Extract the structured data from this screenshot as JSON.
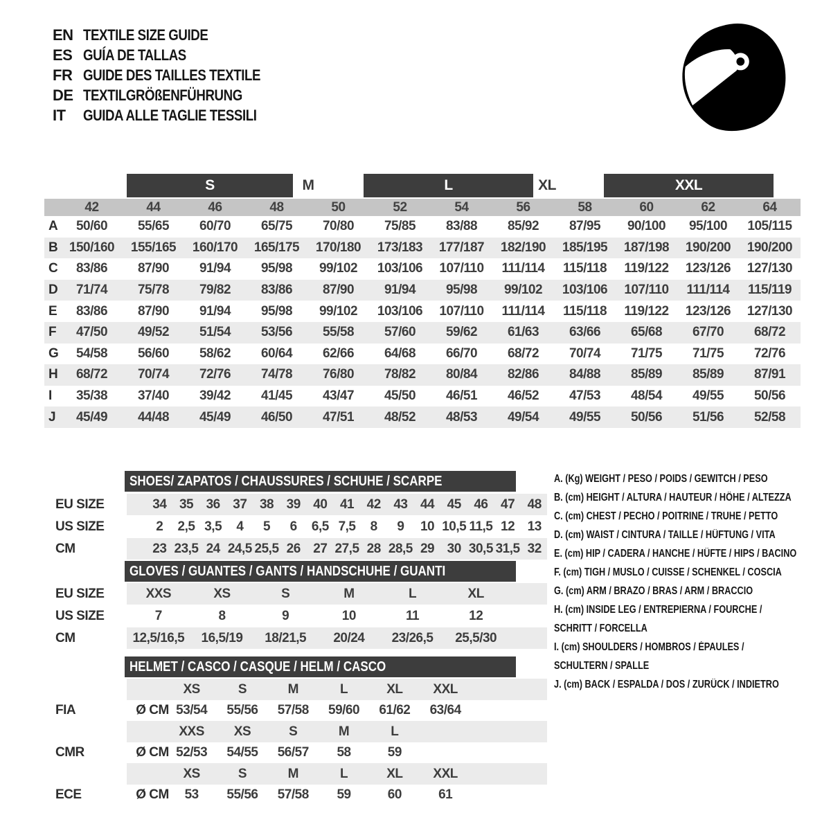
{
  "header": {
    "languages": [
      {
        "code": "EN",
        "title": "TEXTILE SIZE GUIDE"
      },
      {
        "code": "ES",
        "title": "GUÍA DE TALLAS"
      },
      {
        "code": "FR",
        "title": "GUIDE DES TAILLES TEXTILE"
      },
      {
        "code": "DE",
        "title": "TEXTILGRÖßENFÜHRUNG"
      },
      {
        "code": "IT",
        "title": "GUIDA ALLE TAGLIE TESSILI"
      }
    ],
    "icon": "racing-helmet-icon"
  },
  "textile_table": {
    "size_groups": [
      {
        "label": "S",
        "boxed": true
      },
      {
        "label": "M",
        "boxed": false
      },
      {
        "label": "L",
        "boxed": true
      },
      {
        "label": "XL",
        "boxed": false
      },
      {
        "label": "XXL",
        "boxed": true
      }
    ],
    "numeric_sizes": [
      "42",
      "44",
      "46",
      "48",
      "50",
      "52",
      "54",
      "56",
      "58",
      "60",
      "62",
      "64"
    ],
    "rows": [
      {
        "letter": "A",
        "values": [
          "50/60",
          "55/65",
          "60/70",
          "65/75",
          "70/80",
          "75/85",
          "83/88",
          "85/92",
          "87/95",
          "90/100",
          "95/100",
          "105/115"
        ]
      },
      {
        "letter": "B",
        "values": [
          "150/160",
          "155/165",
          "160/170",
          "165/175",
          "170/180",
          "173/183",
          "177/187",
          "182/190",
          "185/195",
          "187/198",
          "190/200",
          "190/200"
        ]
      },
      {
        "letter": "C",
        "values": [
          "83/86",
          "87/90",
          "91/94",
          "95/98",
          "99/102",
          "103/106",
          "107/110",
          "111/114",
          "115/118",
          "119/122",
          "123/126",
          "127/130"
        ]
      },
      {
        "letter": "D",
        "values": [
          "71/74",
          "75/78",
          "79/82",
          "83/86",
          "87/90",
          "91/94",
          "95/98",
          "99/102",
          "103/106",
          "107/110",
          "111/114",
          "115/119"
        ]
      },
      {
        "letter": "E",
        "values": [
          "83/86",
          "87/90",
          "91/94",
          "95/98",
          "99/102",
          "103/106",
          "107/110",
          "111/114",
          "115/118",
          "119/122",
          "123/126",
          "127/130"
        ]
      },
      {
        "letter": "F",
        "values": [
          "47/50",
          "49/52",
          "51/54",
          "53/56",
          "55/58",
          "57/60",
          "59/62",
          "61/63",
          "63/66",
          "65/68",
          "67/70",
          "68/72"
        ]
      },
      {
        "letter": "G",
        "values": [
          "54/58",
          "56/60",
          "58/62",
          "60/64",
          "62/66",
          "64/68",
          "66/70",
          "68/72",
          "70/74",
          "71/75",
          "71/75",
          "72/76"
        ]
      },
      {
        "letter": "H",
        "values": [
          "68/72",
          "70/74",
          "72/76",
          "74/78",
          "76/80",
          "78/82",
          "80/84",
          "82/86",
          "84/88",
          "85/89",
          "85/89",
          "87/91"
        ]
      },
      {
        "letter": "I",
        "values": [
          "35/38",
          "37/40",
          "39/42",
          "41/45",
          "43/47",
          "45/50",
          "46/51",
          "46/52",
          "47/53",
          "48/54",
          "49/55",
          "50/56"
        ]
      },
      {
        "letter": "J",
        "values": [
          "45/49",
          "44/48",
          "45/49",
          "46/50",
          "47/51",
          "48/52",
          "48/53",
          "49/54",
          "49/55",
          "50/56",
          "51/56",
          "52/58"
        ]
      }
    ]
  },
  "shoes": {
    "title": "SHOES/ ZAPATOS / CHAUSSURES / SCHUHE / SCARPE",
    "rows": [
      {
        "label": "EU SIZE",
        "values": [
          "34",
          "35",
          "36",
          "37",
          "38",
          "39",
          "40",
          "41",
          "42",
          "43",
          "44",
          "45",
          "46",
          "47",
          "48"
        ]
      },
      {
        "label": "US SIZE",
        "values": [
          "2",
          "2,5",
          "3,5",
          "4",
          "5",
          "6",
          "6,5",
          "7,5",
          "8",
          "9",
          "10",
          "10,5",
          "11,5",
          "12",
          "13"
        ]
      },
      {
        "label": "CM",
        "values": [
          "23",
          "23,5",
          "24",
          "24,5",
          "25,5",
          "26",
          "27",
          "27,5",
          "28",
          "28,5",
          "29",
          "30",
          "30,5",
          "31,5",
          "32"
        ]
      }
    ]
  },
  "gloves": {
    "title": "GLOVES / GUANTES / GANTS / HANDSCHUHE / GUANTI",
    "rows": [
      {
        "label": "EU SIZE",
        "values": [
          "XXS",
          "XS",
          "S",
          "M",
          "L",
          "XL"
        ]
      },
      {
        "label": "US SIZE",
        "values": [
          "7",
          "8",
          "9",
          "10",
          "11",
          "12"
        ]
      },
      {
        "label": "CM",
        "values": [
          "12,5/16,5",
          "16,5/19",
          "18/21,5",
          "20/24",
          "23/26,5",
          "25,5/30"
        ]
      }
    ]
  },
  "helmet": {
    "title": "HELMET / CASCO / CASQUE / HELM / CASCO",
    "standards": [
      {
        "name": "FIA",
        "unit": "Ø CM",
        "sizes": [
          "XS",
          "S",
          "M",
          "L",
          "XL",
          "XXL"
        ],
        "values": [
          "53/54",
          "55/56",
          "57/58",
          "59/60",
          "61/62",
          "63/64"
        ]
      },
      {
        "name": "CMR",
        "unit": "Ø CM",
        "sizes": [
          "XXS",
          "XS",
          "S",
          "M",
          "L"
        ],
        "values": [
          "52/53",
          "54/55",
          "56/57",
          "58",
          "59"
        ]
      },
      {
        "name": "ECE",
        "unit": "Ø CM",
        "sizes": [
          "XS",
          "S",
          "M",
          "L",
          "XL",
          "XXL"
        ],
        "values": [
          "53",
          "55/56",
          "57/58",
          "59",
          "60",
          "61"
        ]
      }
    ]
  },
  "legend": {
    "lines": [
      "A. (Kg) WEIGHT / PESO / POIDS / GEWITCH / PESO",
      "B. (cm) HEIGHT / ALTURA / HAUTEUR / HÖHE / ALTEZZA",
      "C. (cm) CHEST / PECHO / POITRINE / TRUHE / PETTO",
      "D. (cm) WAIST / CINTURA / TAILLE / HÜFTUNG / VITA",
      "E. (cm) HIP / CADERA / HANCHE / HÜFTE / HIPS / BACINO",
      "F. (cm) TIGH / MUSLO / CUISSE / SCHENKEL / COSCIA",
      "G. (cm) ARM / BRAZO / BRAS / ARM / BRACCIO",
      "H. (cm) INSIDE LEG / ENTREPIERNA / FOURCHE /",
      "SCHRITT / FORCELLA",
      "I. (cm) SHOULDERS / HOMBROS / ÉPAULES /",
      "SCHULTERN / SPALLE",
      "J. (cm) BACK / ESPALDA / DOS / ZURÜCK / INDIETRO"
    ]
  },
  "colors": {
    "dark_header": "#3d3d3d",
    "numeric_strip": "#c5c5c5",
    "row_stripe": "#ebebeb",
    "text": "#3a3a3a",
    "icon": "#000000",
    "background": "#ffffff"
  }
}
